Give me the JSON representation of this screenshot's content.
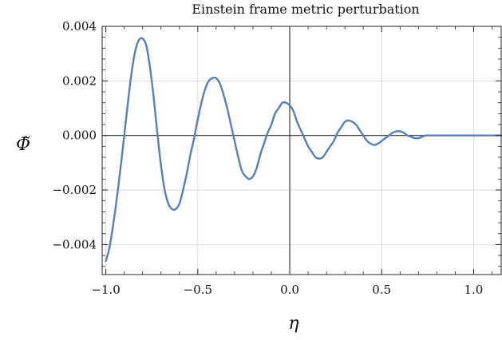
{
  "chart_data": {
    "type": "line",
    "title": "Einstein frame metric perturbation",
    "xlabel": "η",
    "ylabel": "Φ̃",
    "xlim": [
      -1.02,
      1.15
    ],
    "ylim": [
      -0.0051,
      0.004
    ],
    "x_ticks": [
      -1.0,
      -0.5,
      0.0,
      0.5,
      1.0
    ],
    "x_tick_labels": [
      "−1.0",
      "−0.5",
      "0.0",
      "0.5",
      "1.0"
    ],
    "y_ticks": [
      -0.004,
      -0.002,
      0.0,
      0.002,
      0.004
    ],
    "y_tick_labels": [
      "−0.004",
      "−0.002",
      "0.000",
      "0.002",
      "0.004"
    ],
    "grid": true,
    "zero_lines": true,
    "series": [
      {
        "color": "#5b7fb3",
        "x": [
          -1.0,
          -0.98,
          -0.95,
          -0.92,
          -0.9,
          -0.88,
          -0.86,
          -0.84,
          -0.82,
          -0.8,
          -0.78,
          -0.76,
          -0.74,
          -0.72,
          -0.7,
          -0.68,
          -0.66,
          -0.64,
          -0.62,
          -0.6,
          -0.58,
          -0.56,
          -0.54,
          -0.52,
          -0.5,
          -0.48,
          -0.46,
          -0.44,
          -0.42,
          -0.4,
          -0.38,
          -0.36,
          -0.34,
          -0.32,
          -0.3,
          -0.28,
          -0.26,
          -0.24,
          -0.22,
          -0.2,
          -0.18,
          -0.16,
          -0.14,
          -0.12,
          -0.1,
          -0.08,
          -0.06,
          -0.04,
          -0.02,
          0.0,
          0.02,
          0.04,
          0.06,
          0.08,
          0.1,
          0.12,
          0.14,
          0.16,
          0.18,
          0.2,
          0.22,
          0.24,
          0.26,
          0.28,
          0.3,
          0.32,
          0.34,
          0.36,
          0.38,
          0.4,
          0.42,
          0.44,
          0.46,
          0.48,
          0.5,
          0.52,
          0.54,
          0.56,
          0.58,
          0.6,
          0.62,
          0.64,
          0.66,
          0.68,
          0.7,
          0.72,
          0.74,
          0.76,
          0.78,
          0.8,
          0.82,
          0.84,
          0.86,
          0.88,
          0.9,
          0.92,
          0.94,
          0.96,
          0.98,
          1.0,
          1.05,
          1.1,
          1.15
        ],
        "y": [
          -0.0046,
          -0.0041,
          -0.0028,
          -0.0012,
          0.0,
          0.0012,
          0.0023,
          0.0031,
          0.0035,
          0.00355,
          0.0033,
          0.0025,
          0.0014,
          0.0001,
          -0.0011,
          -0.002,
          -0.0025,
          -0.0027,
          -0.0027,
          -0.0025,
          -0.002,
          -0.0014,
          -0.0007,
          -0.0001,
          0.0006,
          0.0012,
          0.0017,
          0.002,
          0.0021,
          0.0021,
          0.0019,
          0.0015,
          0.001,
          0.0004,
          -0.0002,
          -0.0008,
          -0.0013,
          -0.0015,
          -0.0016,
          -0.0015,
          -0.0012,
          -0.0007,
          -0.0003,
          0.0001,
          0.0004,
          0.0008,
          0.001,
          0.0012,
          0.0012,
          0.0011,
          0.0009,
          0.0005,
          0.0002,
          -0.0001,
          -0.0004,
          -0.0006,
          -0.0008,
          -0.00085,
          -0.0008,
          -0.0006,
          -0.0004,
          -0.0002,
          0.0001,
          0.0003,
          0.0005,
          0.00055,
          0.0005,
          0.0004,
          0.0002,
          0.0,
          -0.0002,
          -0.0003,
          -0.00035,
          -0.0003,
          -0.0002,
          -0.0001,
          0.0,
          0.0001,
          0.00015,
          0.00015,
          0.0001,
          0.0,
          -5e-05,
          -0.0001,
          -0.0001,
          -5e-05,
          0.0,
          0.0,
          0.0,
          0.0,
          0.0,
          0.0,
          0.0,
          0.0,
          0.0,
          0.0,
          0.0,
          0.0,
          0.0,
          0.0,
          0.0,
          0.0,
          0.0
        ]
      }
    ]
  }
}
